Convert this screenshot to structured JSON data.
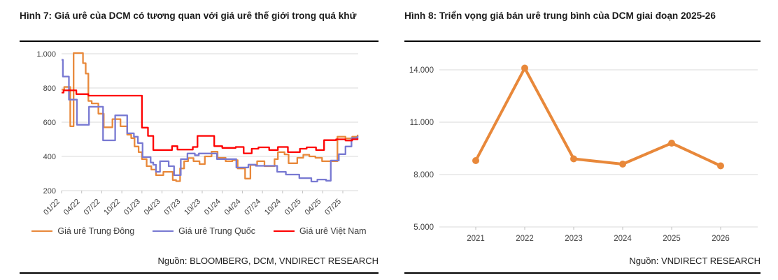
{
  "chart_data": [
    {
      "type": "line",
      "title": "Hình 7: Giá urê của DCM có tương quan với giá urê thế giới trong quá khứ",
      "source": "Nguồn: BLOOMBERG, DCM, VNDIRECT RESEARCH",
      "interpolation": "step-after",
      "grid": "horizontal",
      "legend_position": "bottom",
      "x_unit": "months since 01/2022",
      "x_range": [
        0,
        44.2
      ],
      "ylim": [
        200,
        1000
      ],
      "y_ticks": [
        200,
        400,
        600,
        800,
        1000
      ],
      "y_tick_labels": [
        "200",
        "400",
        "600",
        "800",
        "1.000"
      ],
      "x_tick_months": [
        0,
        3,
        6,
        9,
        12,
        15,
        18,
        21,
        24,
        27,
        30,
        33,
        36,
        39,
        42
      ],
      "x_tick_labels": [
        "01/22",
        "04/22",
        "07/22",
        "10/22",
        "01/23",
        "04/23",
        "07/23",
        "10/23",
        "01/24",
        "04/24",
        "07/24",
        "10/24",
        "01/25",
        "04/25",
        "07/25"
      ],
      "series": [
        {
          "name": "Giá urê Trung Đông",
          "color": "#E8883A",
          "points": [
            [
              0,
              790
            ],
            [
              0.4,
              806
            ],
            [
              1.3,
              576
            ],
            [
              1.8,
              1004
            ],
            [
              3.2,
              945
            ],
            [
              3.6,
              884
            ],
            [
              4.0,
              724
            ],
            [
              4.5,
              710
            ],
            [
              5.5,
              650
            ],
            [
              6.3,
              570
            ],
            [
              7.6,
              618
            ],
            [
              8.8,
              576
            ],
            [
              9.8,
              527
            ],
            [
              10.4,
              507
            ],
            [
              10.9,
              458
            ],
            [
              11.5,
              425
            ],
            [
              12.0,
              384
            ],
            [
              12.7,
              343
            ],
            [
              13.4,
              323
            ],
            [
              14.1,
              290
            ],
            [
              15.2,
              310
            ],
            [
              16.6,
              262
            ],
            [
              17.1,
              255
            ],
            [
              17.7,
              330
            ],
            [
              18.3,
              372
            ],
            [
              18.9,
              390
            ],
            [
              19.7,
              372
            ],
            [
              20.6,
              355
            ],
            [
              21.4,
              400
            ],
            [
              22.4,
              428
            ],
            [
              23.3,
              392
            ],
            [
              24.5,
              372
            ],
            [
              25.5,
              378
            ],
            [
              26.3,
              330
            ],
            [
              27.4,
              270
            ],
            [
              28.2,
              350
            ],
            [
              29.2,
              372
            ],
            [
              30.3,
              343
            ],
            [
              31.8,
              384
            ],
            [
              32.3,
              425
            ],
            [
              33.3,
              412
            ],
            [
              33.9,
              360
            ],
            [
              35.2,
              392
            ],
            [
              36.1,
              410
            ],
            [
              37.0,
              400
            ],
            [
              37.9,
              392
            ],
            [
              38.9,
              372
            ],
            [
              41.2,
              515
            ],
            [
              42.4,
              505
            ],
            [
              43.4,
              515
            ],
            [
              44.2,
              527
            ]
          ]
        },
        {
          "name": "Giá urê Trung Quốc",
          "color": "#7879D2",
          "points": [
            [
              0,
              965
            ],
            [
              0.2,
              867
            ],
            [
              1.1,
              732
            ],
            [
              2.3,
              585
            ],
            [
              4.1,
              690
            ],
            [
              6.2,
              494
            ],
            [
              8.0,
              640
            ],
            [
              9.8,
              535
            ],
            [
              10.8,
              515
            ],
            [
              11.4,
              478
            ],
            [
              12.1,
              396
            ],
            [
              13.3,
              364
            ],
            [
              13.7,
              351
            ],
            [
              14.1,
              310
            ],
            [
              14.7,
              372
            ],
            [
              16.0,
              343
            ],
            [
              16.8,
              290
            ],
            [
              17.8,
              384
            ],
            [
              18.8,
              417
            ],
            [
              19.9,
              407
            ],
            [
              20.5,
              417
            ],
            [
              23.2,
              384
            ],
            [
              26.1,
              335
            ],
            [
              27.9,
              352
            ],
            [
              29.0,
              345
            ],
            [
              32.2,
              310
            ],
            [
              33.5,
              294
            ],
            [
              35.5,
              273
            ],
            [
              37.3,
              253
            ],
            [
              38.2,
              265
            ],
            [
              39.5,
              258
            ],
            [
              40.2,
              376
            ],
            [
              41.4,
              413
            ],
            [
              42.4,
              458
            ],
            [
              43.3,
              507
            ],
            [
              44.2,
              520
            ]
          ]
        },
        {
          "name": "Giá urê Việt Nam",
          "color": "#FE0000",
          "points": [
            [
              0,
              773
            ],
            [
              0.3,
              786
            ],
            [
              2.2,
              764
            ],
            [
              4.0,
              755
            ],
            [
              12.0,
              568
            ],
            [
              12.9,
              520
            ],
            [
              13.7,
              437
            ],
            [
              16.5,
              460
            ],
            [
              17.3,
              440
            ],
            [
              19.6,
              455
            ],
            [
              20.3,
              520
            ],
            [
              22.8,
              460
            ],
            [
              24.0,
              450
            ],
            [
              26.0,
              455
            ],
            [
              27.2,
              418
            ],
            [
              28.4,
              445
            ],
            [
              29.4,
              453
            ],
            [
              31.0,
              437
            ],
            [
              32.3,
              455
            ],
            [
              33.8,
              425
            ],
            [
              35.6,
              445
            ],
            [
              36.6,
              453
            ],
            [
              38.0,
              437
            ],
            [
              39.2,
              495
            ],
            [
              41.0,
              500
            ],
            [
              42.4,
              493
            ],
            [
              43.4,
              500
            ],
            [
              44.2,
              505
            ]
          ]
        }
      ]
    },
    {
      "type": "line",
      "title": "Hình 8: Triển vọng giá bán urê trung bình của DCM giai đoạn 2025-26",
      "source": "Nguồn: VNDIRECT RESEARCH",
      "grid": "horizontal",
      "markers": true,
      "categories": [
        "2021",
        "2022",
        "2023",
        "2024",
        "2025",
        "2026"
      ],
      "values": [
        8800,
        14100,
        8900,
        8600,
        9800,
        8500
      ],
      "series_name": "Giá bán urê trung bình của DCM",
      "series_color": "#E8883A",
      "ylim": [
        5000,
        15500
      ],
      "y_ticks": [
        5000,
        8000,
        11000,
        14000
      ],
      "y_tick_labels": [
        "5.000",
        "8.000",
        "11.000",
        "14.000"
      ]
    }
  ],
  "colors": {
    "grid": "#D9D9D9",
    "axis": "#BFBFBF",
    "tick_text": "#404040"
  }
}
